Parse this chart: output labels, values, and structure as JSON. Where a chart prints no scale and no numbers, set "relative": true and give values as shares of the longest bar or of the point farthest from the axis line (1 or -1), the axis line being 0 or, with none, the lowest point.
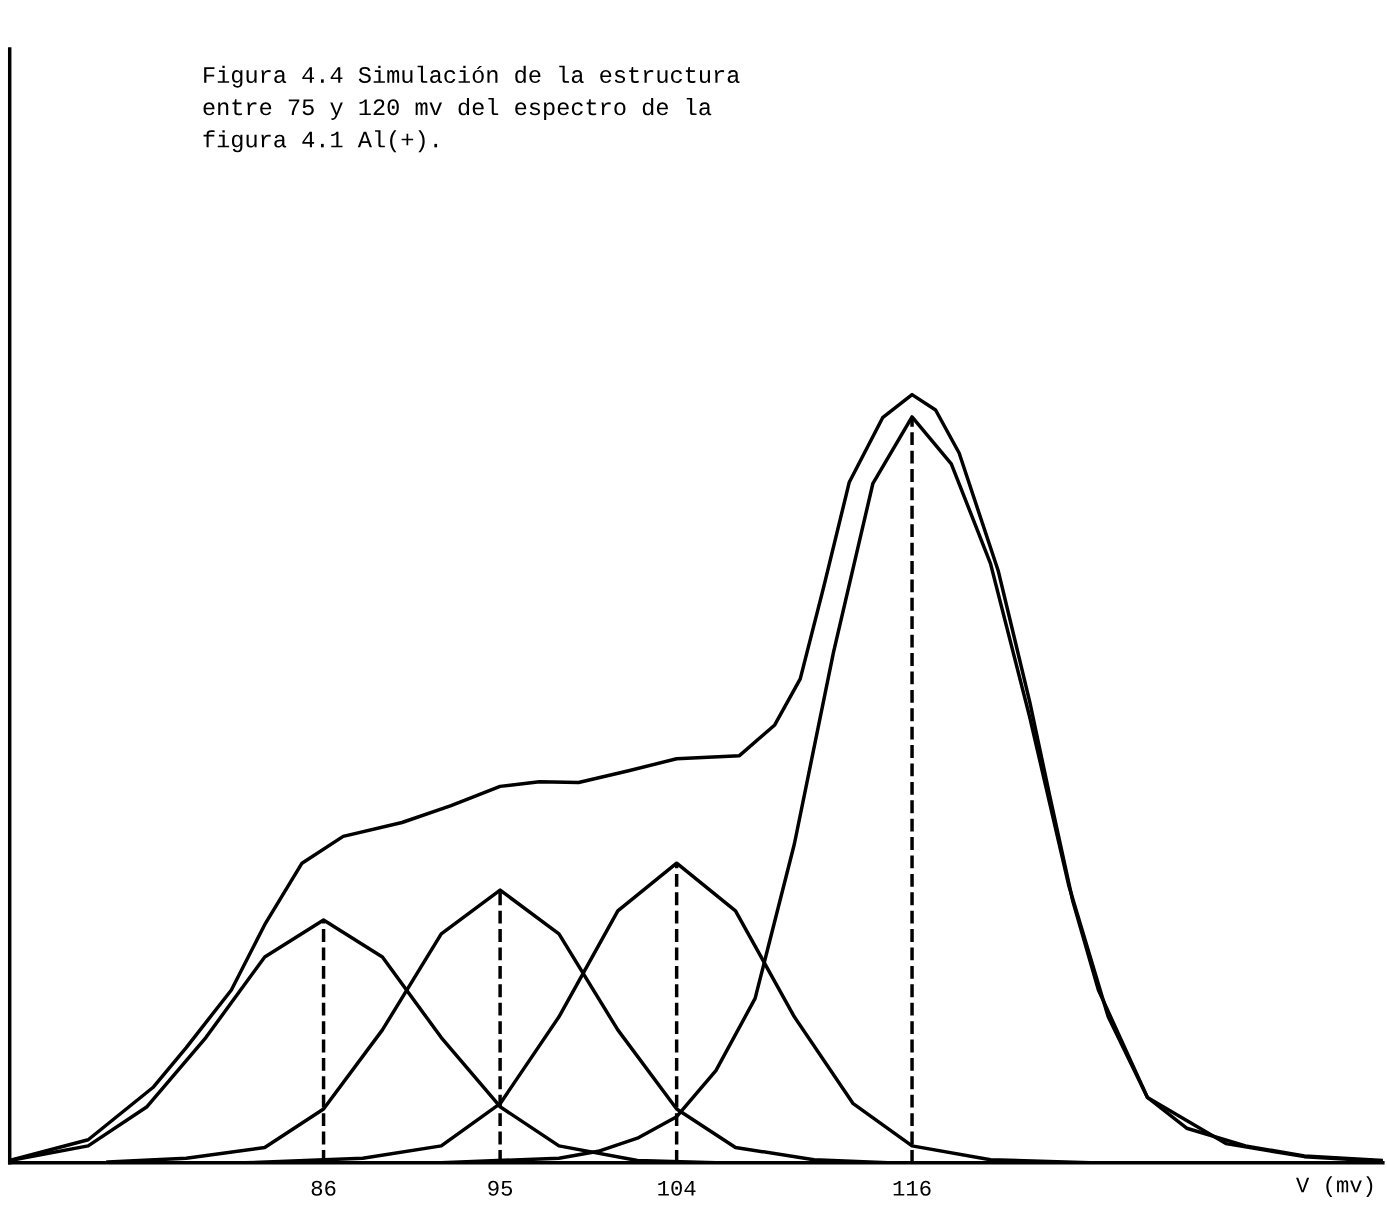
{
  "chart_data": {
    "type": "line",
    "title": "Figura 4.4 Simulación de la estructura\nentre 75 y 120 mv del espectro de la\nfigura 4.1 Al(+).",
    "xlabel": "V (mv)",
    "relative": true,
    "xlim": [
      70,
      140
    ],
    "xticks": [
      86,
      95,
      104,
      116
    ],
    "grid": false,
    "legend": false,
    "marker": "none",
    "line_style": "solid",
    "series": [
      {
        "color": "#000000",
        "x": [
          70,
          74,
          77.3,
          79,
          81.3,
          83,
          84.9,
          87,
          90,
          92.5,
          95,
          97,
          99,
          101.5,
          104,
          107.2,
          109,
          110.3,
          111.5,
          112.8,
          114.5,
          116,
          117.2,
          118.4,
          120.4,
          122,
          123,
          124.2,
          125.5,
          128,
          130,
          133,
          136,
          140
        ],
        "values": [
          0.003,
          0.03,
          0.098,
          0.15,
          0.225,
          0.31,
          0.39,
          0.425,
          0.443,
          0.465,
          0.49,
          0.496,
          0.495,
          0.51,
          0.526,
          0.53,
          0.57,
          0.63,
          0.75,
          0.886,
          0.97,
          1.0,
          0.98,
          0.924,
          0.77,
          0.6,
          0.48,
          0.34,
          0.225,
          0.085,
          0.045,
          0.022,
          0.009,
          0.003
        ]
      },
      {
        "color": "#000000",
        "x": [
          70,
          74,
          77,
          80,
          83,
          86,
          89,
          92,
          95,
          98,
          102,
          106,
          110
        ],
        "values": [
          0.003,
          0.022,
          0.073,
          0.163,
          0.268,
          0.316,
          0.268,
          0.163,
          0.073,
          0.022,
          0.003,
          0.0,
          0.0
        ]
      },
      {
        "color": "#000000",
        "x": [
          75,
          79,
          83,
          86,
          89,
          92,
          95,
          98,
          101,
          104,
          107,
          111,
          115
        ],
        "values": [
          0.001,
          0.006,
          0.02,
          0.07,
          0.173,
          0.298,
          0.355,
          0.298,
          0.173,
          0.07,
          0.02,
          0.004,
          0.0
        ]
      },
      {
        "color": "#000000",
        "x": [
          82,
          88,
          92,
          95,
          98,
          101,
          104,
          107,
          110,
          113,
          116,
          120,
          125
        ],
        "values": [
          0.0,
          0.006,
          0.022,
          0.077,
          0.19,
          0.328,
          0.39,
          0.328,
          0.19,
          0.077,
          0.022,
          0.004,
          0.0
        ]
      },
      {
        "color": "#000000",
        "x": [
          92,
          98,
          100,
          102,
          104,
          106,
          108,
          110,
          112,
          114,
          116,
          118,
          120,
          122,
          124,
          126,
          128,
          132,
          136,
          140
        ],
        "values": [
          0.0,
          0.006,
          0.015,
          0.032,
          0.06,
          0.12,
          0.214,
          0.415,
          0.665,
          0.884,
          0.971,
          0.91,
          0.78,
          0.58,
          0.36,
          0.19,
          0.085,
          0.025,
          0.008,
          0.002
        ]
      }
    ],
    "ref_lines": [
      {
        "axis": "x",
        "value": 86,
        "color": "#000000",
        "line_style": "dashed"
      },
      {
        "axis": "x",
        "value": 95,
        "color": "#000000",
        "line_style": "dashed"
      },
      {
        "axis": "x",
        "value": 104,
        "color": "#000000",
        "line_style": "dashed"
      },
      {
        "axis": "x",
        "value": 116,
        "color": "#000000",
        "line_style": "dashed"
      }
    ]
  }
}
